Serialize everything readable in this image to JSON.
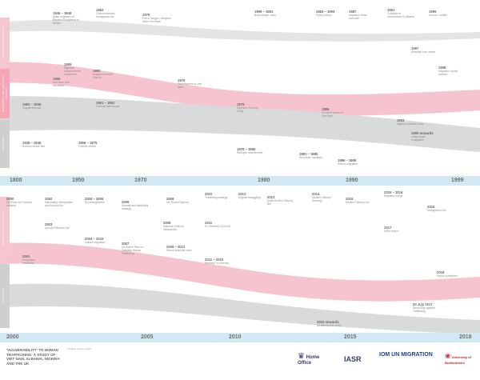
{
  "colors": {
    "pink_band": "#f6c4ce",
    "grey_band": "#d9dadb",
    "axis_bar": "#d2e9f4",
    "row_label": "#f4a6b5"
  },
  "rows": [
    "LEGISLATION AND POLICY",
    "HISTORICAL AND POLITICAL CONTEXT",
    "MIGRATION"
  ],
  "top_ticks": [
    "1800",
    "1950",
    "1970",
    "1980",
    "1990",
    "1999"
  ],
  "bottom_ticks": [
    "2000",
    "2005",
    "2010",
    "2015",
    "2018"
  ],
  "top_events": [
    {
      "y": "1946 – 1948",
      "t": "Mass migration of Eastern Europeans to Britain"
    },
    {
      "y": "1962",
      "t": "Commonwealth Immigrants Act"
    },
    {
      "y": "1975",
      "t": "Fall of Saigon; refugees leave Viet Nam"
    },
    {
      "y": "1983 – 1993",
      "t": "Policy reform"
    },
    {
      "y": "1987",
      "t": "Migration flows increase"
    },
    {
      "y": "1991",
      "t": "Collapse of communism in Albania"
    },
    {
      "y": "1999",
      "t": "Kosovo conflict"
    },
    {
      "y": "1999 – 1981",
      "t": "Boat people crisis"
    },
    {
      "y": "1955",
      "t": "Nigerian independence movement"
    },
    {
      "y": "1960",
      "t": "Independence of Nigeria"
    },
    {
      "y": "1965",
      "t": "Viet Nam War escalates"
    },
    {
      "y": "1976",
      "t": "Reunification of Viet Nam"
    },
    {
      "y": "1979",
      "t": "Migration to Hong Kong"
    },
    {
      "y": "1986",
      "t": "Doi Moi reforms in Viet Nam"
    },
    {
      "y": "1997",
      "t": "Albanian civil unrest"
    },
    {
      "y": "1998",
      "t": "Migration routes expand"
    },
    {
      "y": "1993",
      "t": "Nigerian political crisis"
    },
    {
      "y": "1983 – 1935",
      "t": "Migrant arrivals"
    },
    {
      "y": "1939 – 1945",
      "t": "Second World War"
    },
    {
      "y": "1961 – 1962",
      "t": "Colonial withdrawal"
    },
    {
      "y": "1958 – 1975",
      "t": "Conflict period"
    },
    {
      "y": "1976 – 1985",
      "t": "Refugee resettlement"
    },
    {
      "y": "1981 – 1985",
      "t": "Economic hardship"
    },
    {
      "y": "1986 – 1995",
      "t": "Return migration"
    },
    {
      "y": "1990 onwards",
      "t": "Large-scale emigration"
    }
  ],
  "bottom_events": [
    {
      "y": "2000",
      "t": "UN Palermo Protocol adopted"
    },
    {
      "y": "2001",
      "t": "Emigration intensifies"
    },
    {
      "y": "2002",
      "t": "Nationality, Immigration and Asylum Act"
    },
    {
      "y": "2003",
      "t": "Sexual Offences Act"
    },
    {
      "y": "2004 – 2005",
      "t": "EU enlargement"
    },
    {
      "y": "2004 – 2019",
      "t": "Labour migration"
    },
    {
      "y": "2006",
      "t": "Albania anti-trafficking strategy"
    },
    {
      "y": "2007",
      "t": "UK Action Plan on Tackling Human Trafficking"
    },
    {
      "y": "2008",
      "t": "National Referral Mechanism"
    },
    {
      "y": "2009",
      "t": "UK Border Agency"
    },
    {
      "y": "2009 – 2012",
      "t": "Global financial crisis"
    },
    {
      "y": "2010",
      "t": "Trafficking strategy"
    },
    {
      "y": "2011",
      "t": "EU Directive 2011/36"
    },
    {
      "y": "2011 – 2015",
      "t": "Increase in referrals"
    },
    {
      "y": "2012",
      "t": "Migrant smuggling"
    },
    {
      "y": "2013",
      "t": "Draft Modern Slavery Bill"
    },
    {
      "y": "2014",
      "t": "Modern Slavery Strategy"
    },
    {
      "y": "2015",
      "t": "Modern Slavery Act"
    },
    {
      "y": "2015 onwards",
      "t": "Mediterranean crisis"
    },
    {
      "y": "2015 – 2016",
      "t": "Migration surge"
    },
    {
      "y": "2016",
      "t": "Immigration Act"
    },
    {
      "y": "2017",
      "t": "NRM reform"
    },
    {
      "y": "30 July 2017",
      "t": "World Day against Trafficking"
    },
    {
      "y": "2018",
      "t": "Report published"
    }
  ],
  "title": "'VULNERABILITY' TO HUMAN TRAFFICKING: A STUDY OF VIET NAM, ALBANIA, NIGERIA AND THE UK",
  "subtitle": "Timeline of key events",
  "logos": [
    "Home Office",
    "IASR",
    "IOM UN MIGRATION",
    "University of Bedfordshire"
  ]
}
